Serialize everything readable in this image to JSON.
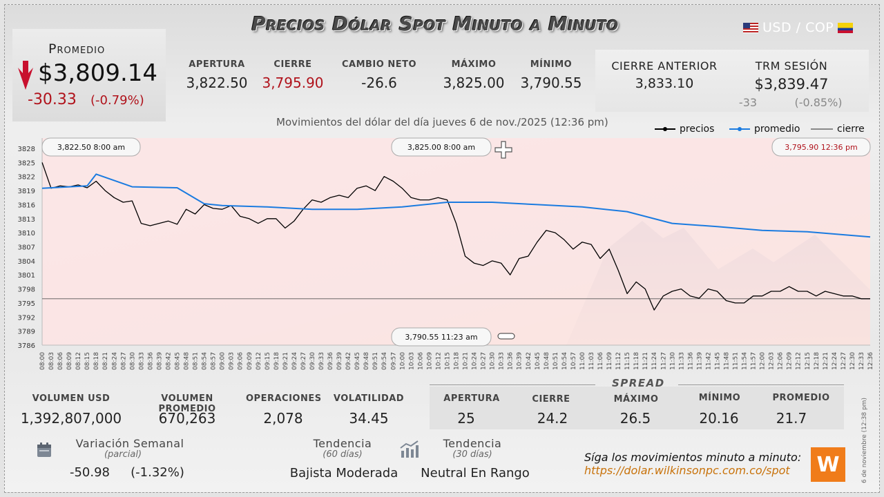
{
  "header": {
    "title": "Precios Dólar Spot Minuto a Minuto",
    "pair": "USD / COP"
  },
  "promedio": {
    "label": "Promedio",
    "value": "$3,809.14",
    "change": "-30.33",
    "pct": "(-0.79%)"
  },
  "stats": {
    "apertura_label": "APERTURA",
    "apertura": "3,822.50",
    "cierre_label": "CIERRE",
    "cierre": "3,795.90",
    "cambio_label": "CAMBIO NETO",
    "cambio": "-26.6",
    "maximo_label": "MÁXIMO",
    "maximo": "3,825.00",
    "minimo_label": "MÍNIMO",
    "minimo": "3,790.55",
    "cierre_anterior_label": "CIERRE ANTERIOR",
    "cierre_anterior": "3,833.10",
    "trm_label": "TRM SESIÓN",
    "trm": "$3,839.47",
    "trm_change": "-33",
    "trm_pct": "(-0.85%)"
  },
  "chart_subtitle": "Movimientos del dólar del día jueves 6 de nov./2025 (12:36 pm)",
  "legend": {
    "precios": "precios",
    "promedio": "promedio",
    "cierre": "cierre"
  },
  "annotations": {
    "open": "3,822.50  8:00 am",
    "max": "3,825.00  8:00 am",
    "close": "3,795.90  12:36 pm",
    "min": "3,790.55  11:23 am"
  },
  "colors": {
    "price_line": "#000000",
    "average_line": "#1a7be0",
    "close_line": "#555555",
    "negative_fill": "#fde1e1",
    "red_text": "#b0121b"
  },
  "chart_data": {
    "type": "line",
    "title": "Movimientos del dólar del día jueves 6 de nov./2025 (12:36 pm)",
    "ylim": [
      3786,
      3828
    ],
    "yticks": [
      3828,
      3825,
      3822,
      3819,
      3816,
      3813,
      3810,
      3807,
      3804,
      3801,
      3798,
      3795,
      3792,
      3789,
      3786
    ],
    "x_ticks": [
      "08:00",
      "08:03",
      "08:06",
      "08:09",
      "08:12",
      "08:15",
      "08:18",
      "08:21",
      "08:24",
      "08:27",
      "08:30",
      "08:33",
      "08:36",
      "08:39",
      "08:42",
      "08:45",
      "08:48",
      "08:51",
      "08:54",
      "08:57",
      "09:00",
      "09:03",
      "09:06",
      "09:09",
      "09:12",
      "09:15",
      "09:18",
      "09:21",
      "09:24",
      "09:27",
      "09:30",
      "09:33",
      "09:36",
      "09:39",
      "09:42",
      "09:45",
      "09:48",
      "09:51",
      "09:54",
      "09:57",
      "10:00",
      "10:03",
      "10:06",
      "10:09",
      "10:12",
      "10:15",
      "10:18",
      "10:21",
      "10:24",
      "10:27",
      "10:30",
      "10:33",
      "10:36",
      "10:39",
      "10:42",
      "10:45",
      "10:48",
      "10:51",
      "10:54",
      "10:57",
      "11:00",
      "11:03",
      "11:06",
      "11:09",
      "11:12",
      "11:15",
      "11:18",
      "11:21",
      "11:24",
      "11:27",
      "11:30",
      "11:33",
      "11:36",
      "11:39",
      "11:42",
      "11:45",
      "11:48",
      "11:51",
      "11:54",
      "11:57",
      "12:00",
      "12:03",
      "12:06",
      "12:09",
      "12:12",
      "12:15",
      "12:18",
      "12:21",
      "12:24",
      "12:27",
      "12:30",
      "12:33",
      "12:36"
    ],
    "close_level": 3795.9,
    "series": [
      {
        "name": "precios",
        "color": "#000000",
        "x": [
          "08:00",
          "08:03",
          "08:06",
          "08:09",
          "08:12",
          "08:15",
          "08:18",
          "08:21",
          "08:24",
          "08:27",
          "08:30",
          "08:33",
          "08:36",
          "08:39",
          "08:42",
          "08:45",
          "08:48",
          "08:51",
          "08:54",
          "08:57",
          "09:00",
          "09:03",
          "09:06",
          "09:09",
          "09:12",
          "09:15",
          "09:18",
          "09:21",
          "09:24",
          "09:27",
          "09:30",
          "09:33",
          "09:36",
          "09:39",
          "09:42",
          "09:45",
          "09:48",
          "09:51",
          "09:54",
          "09:57",
          "10:00",
          "10:03",
          "10:06",
          "10:09",
          "10:12",
          "10:15",
          "10:18",
          "10:21",
          "10:24",
          "10:27",
          "10:30",
          "10:33",
          "10:36",
          "10:39",
          "10:42",
          "10:45",
          "10:48",
          "10:51",
          "10:54",
          "10:57",
          "11:00",
          "11:03",
          "11:06",
          "11:09",
          "11:12",
          "11:15",
          "11:18",
          "11:21",
          "11:24",
          "11:27",
          "11:30",
          "11:33",
          "11:36",
          "11:39",
          "11:42",
          "11:45",
          "11:48",
          "11:51",
          "11:54",
          "11:57",
          "12:00",
          "12:03",
          "12:06",
          "12:09",
          "12:12",
          "12:15",
          "12:18",
          "12:21",
          "12:24",
          "12:27",
          "12:30",
          "12:33",
          "12:36"
        ],
        "values": [
          3825.0,
          3819.5,
          3820.0,
          3819.8,
          3820.2,
          3819.6,
          3821.0,
          3819.0,
          3817.5,
          3816.5,
          3816.8,
          3812.0,
          3811.5,
          3812.0,
          3812.5,
          3811.8,
          3815.0,
          3814.0,
          3816.0,
          3815.2,
          3815.0,
          3815.8,
          3813.5,
          3813.0,
          3812.0,
          3813.0,
          3813.0,
          3811.0,
          3812.5,
          3815.0,
          3817.0,
          3816.5,
          3817.5,
          3818.0,
          3817.5,
          3819.5,
          3820.0,
          3819.0,
          3822.0,
          3821.0,
          3819.5,
          3817.5,
          3817.0,
          3817.0,
          3817.5,
          3817.0,
          3812.0,
          3805.0,
          3803.5,
          3803.0,
          3804.0,
          3803.5,
          3801.0,
          3804.5,
          3805.0,
          3808.0,
          3810.5,
          3810.0,
          3808.5,
          3806.5,
          3808.0,
          3807.5,
          3804.5,
          3806.5,
          3802.0,
          3797.0,
          3799.5,
          3798.0,
          3793.5,
          3796.5,
          3797.5,
          3798.0,
          3796.5,
          3796.0,
          3798.0,
          3797.5,
          3795.5,
          3795.0,
          3795.0,
          3796.5,
          3796.5,
          3797.5,
          3797.5,
          3798.5,
          3797.5,
          3797.5,
          3796.5,
          3797.5,
          3797.0,
          3796.5,
          3796.5,
          3795.9,
          3795.9
        ]
      },
      {
        "name": "promedio",
        "color": "#1a7be0",
        "x": [
          "08:00",
          "08:15",
          "08:18",
          "08:30",
          "08:45",
          "08:54",
          "09:00",
          "09:15",
          "09:30",
          "09:45",
          "10:00",
          "10:15",
          "10:30",
          "10:45",
          "11:00",
          "11:15",
          "11:30",
          "11:45",
          "12:00",
          "12:15",
          "12:36"
        ],
        "values": [
          3819.5,
          3820.0,
          3822.5,
          3819.8,
          3819.6,
          3816.2,
          3815.8,
          3815.5,
          3815.0,
          3815.0,
          3815.5,
          3816.5,
          3816.5,
          3816.0,
          3815.5,
          3814.5,
          3812.0,
          3811.3,
          3810.5,
          3810.2,
          3809.1
        ]
      }
    ]
  },
  "bottom": {
    "volumen_label": "VOLUMEN USD",
    "volumen": "1,392,807,000",
    "volumen_prom_label": "VOLUMEN PROMEDIO",
    "volumen_prom": "670,263",
    "operaciones_label": "OPERACIONES",
    "operaciones": "2,078",
    "volatilidad_label": "VOLATILIDAD",
    "volatilidad": "34.45"
  },
  "spread": {
    "title": "SPREAD",
    "apertura_label": "APERTURA",
    "apertura": "25",
    "cierre_label": "CIERRE",
    "cierre": "24.2",
    "maximo_label": "MÁXIMO",
    "maximo": "26.5",
    "minimo_label": "MÍNIMO",
    "minimo": "20.16",
    "promedio_label": "PROMEDIO",
    "promedio": "21.7"
  },
  "weekly": {
    "label": "Variación Semanal",
    "sub": "(parcial)",
    "value": "-50.98",
    "pct": "(-1.32%)"
  },
  "trend60": {
    "label": "Tendencia",
    "sub": "(60 días)",
    "value": "Bajista Moderada"
  },
  "trend30": {
    "label": "Tendencia",
    "sub": "(30 días)",
    "value": "Neutral En Rango"
  },
  "footer": {
    "text": "Síga los movimientos minuto a minuto:",
    "link": "https://dolar.wilkinsonpc.com.co/spot",
    "logo": "W",
    "side_date": "6 de noviembre (12:38 pm)"
  }
}
